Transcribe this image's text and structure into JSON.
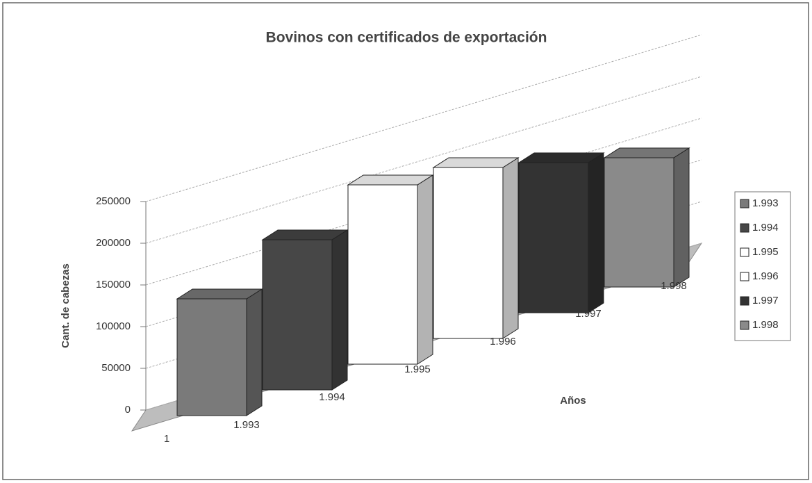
{
  "chart_data": {
    "type": "bar3d",
    "title": "Bovinos con certificados de exportación",
    "y_label": "Cant. de cabezas",
    "x_label": "Años",
    "categories": [
      "1"
    ],
    "series": [
      {
        "name": "1.993",
        "color": "#7a7a7a",
        "values": [
          140000
        ]
      },
      {
        "name": "1.994",
        "color": "#474747",
        "values": [
          180000
        ]
      },
      {
        "name": "1.995",
        "color": "#ffffff",
        "values": [
          215000
        ]
      },
      {
        "name": "1.996",
        "color": "#ffffff",
        "values": [
          205000
        ]
      },
      {
        "name": "1.997",
        "color": "#333333",
        "values": [
          180000
        ]
      },
      {
        "name": "1.998",
        "color": "#8a8a8a",
        "values": [
          155000
        ]
      }
    ],
    "ylim": [
      0,
      250000
    ],
    "yticks": [
      0,
      50000,
      100000,
      150000,
      200000,
      250000
    ],
    "grid": true,
    "legend": "right"
  }
}
